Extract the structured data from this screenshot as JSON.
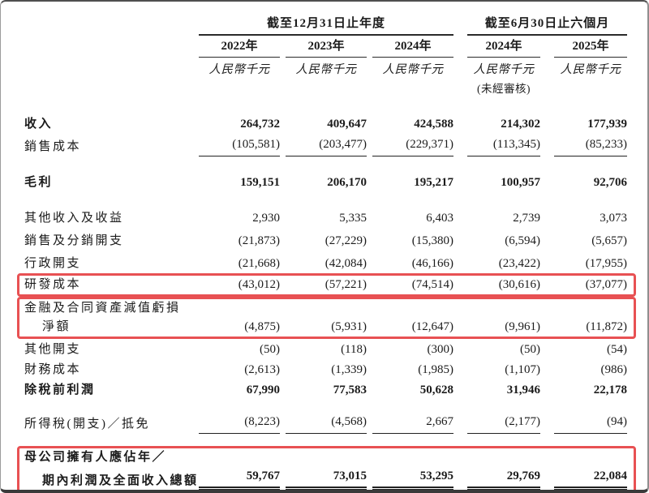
{
  "page": {
    "kind": "consolidated-statement-of-profit-or-loss",
    "colors": {
      "highlight_border": "#e85153",
      "text": "#1b1b1b"
    }
  },
  "header": {
    "group_annual": {
      "label": "截至12月31日止年度",
      "years": [
        "2022年",
        "2023年",
        "2024年"
      ]
    },
    "group_interim": {
      "label": "截至6月30日止六個月",
      "years": [
        "2024年",
        "2025年"
      ]
    },
    "unit_label": "人民幣千元",
    "unaudited_note": "(未經審核)"
  },
  "sections": [
    {
      "boxed": false,
      "rows": [
        {
          "label": "收入",
          "bold": true,
          "values": [
            "264,732",
            "409,647",
            "424,588",
            "214,302",
            "177,939"
          ]
        },
        {
          "label": "銷售成本",
          "rule": "single",
          "values": [
            "(105,581)",
            "(203,477)",
            "(229,371)",
            "(113,345)",
            "(85,233)"
          ]
        },
        {
          "label": "毛利",
          "bold": true,
          "space_before": true,
          "values": [
            "159,151",
            "206,170",
            "195,217",
            "100,957",
            "92,706"
          ]
        },
        {
          "label": "其他收入及收益",
          "space_before": true,
          "values": [
            "2,930",
            "5,335",
            "6,403",
            "2,739",
            "3,073"
          ]
        },
        {
          "label": "銷售及分銷開支",
          "values": [
            "(21,873)",
            "(27,229)",
            "(15,380)",
            "(6,594)",
            "(5,657)"
          ]
        },
        {
          "label": "行政開支",
          "values": [
            "(21,668)",
            "(42,084)",
            "(46,166)",
            "(23,422)",
            "(17,955)"
          ]
        }
      ]
    },
    {
      "boxed": true,
      "rows": [
        {
          "label": "研發成本",
          "values": [
            "(43,012)",
            "(57,221)",
            "(74,514)",
            "(30,616)",
            "(37,077)"
          ]
        }
      ]
    },
    {
      "boxed": true,
      "rows": [
        {
          "label": "金融及合同資產減值虧損",
          "values": null
        },
        {
          "label": "淨額",
          "indent": true,
          "values": [
            "(4,875)",
            "(5,931)",
            "(12,647)",
            "(9,961)",
            "(11,872)"
          ]
        }
      ]
    },
    {
      "boxed": false,
      "rows": [
        {
          "label": "其他開支",
          "compact": true,
          "values": [
            "(50)",
            "(118)",
            "(300)",
            "(50)",
            "(54)"
          ]
        },
        {
          "label": "財務成本",
          "compact": true,
          "values": [
            "(2,613)",
            "(1,339)",
            "(1,985)",
            "(1,107)",
            "(986)"
          ]
        },
        {
          "label": "除稅前利潤",
          "bold": true,
          "compact": true,
          "values": [
            "67,990",
            "77,583",
            "50,628",
            "31,946",
            "22,178"
          ]
        },
        {
          "label": "所得稅(開支)／抵免",
          "rule": "single",
          "space_before_sm": true,
          "values": [
            "(8,223)",
            "(4,568)",
            "2,667",
            "(2,177)",
            "(94)"
          ]
        }
      ]
    },
    {
      "boxed": true,
      "space_before": true,
      "rows": [
        {
          "label": "母公司擁有人應佔年／",
          "bold": true,
          "values": null
        },
        {
          "label": "期內利潤及全面收入總額",
          "bold": true,
          "indent": true,
          "rule": "double",
          "values": [
            "59,767",
            "73,015",
            "53,295",
            "29,769",
            "22,084"
          ]
        }
      ]
    }
  ]
}
